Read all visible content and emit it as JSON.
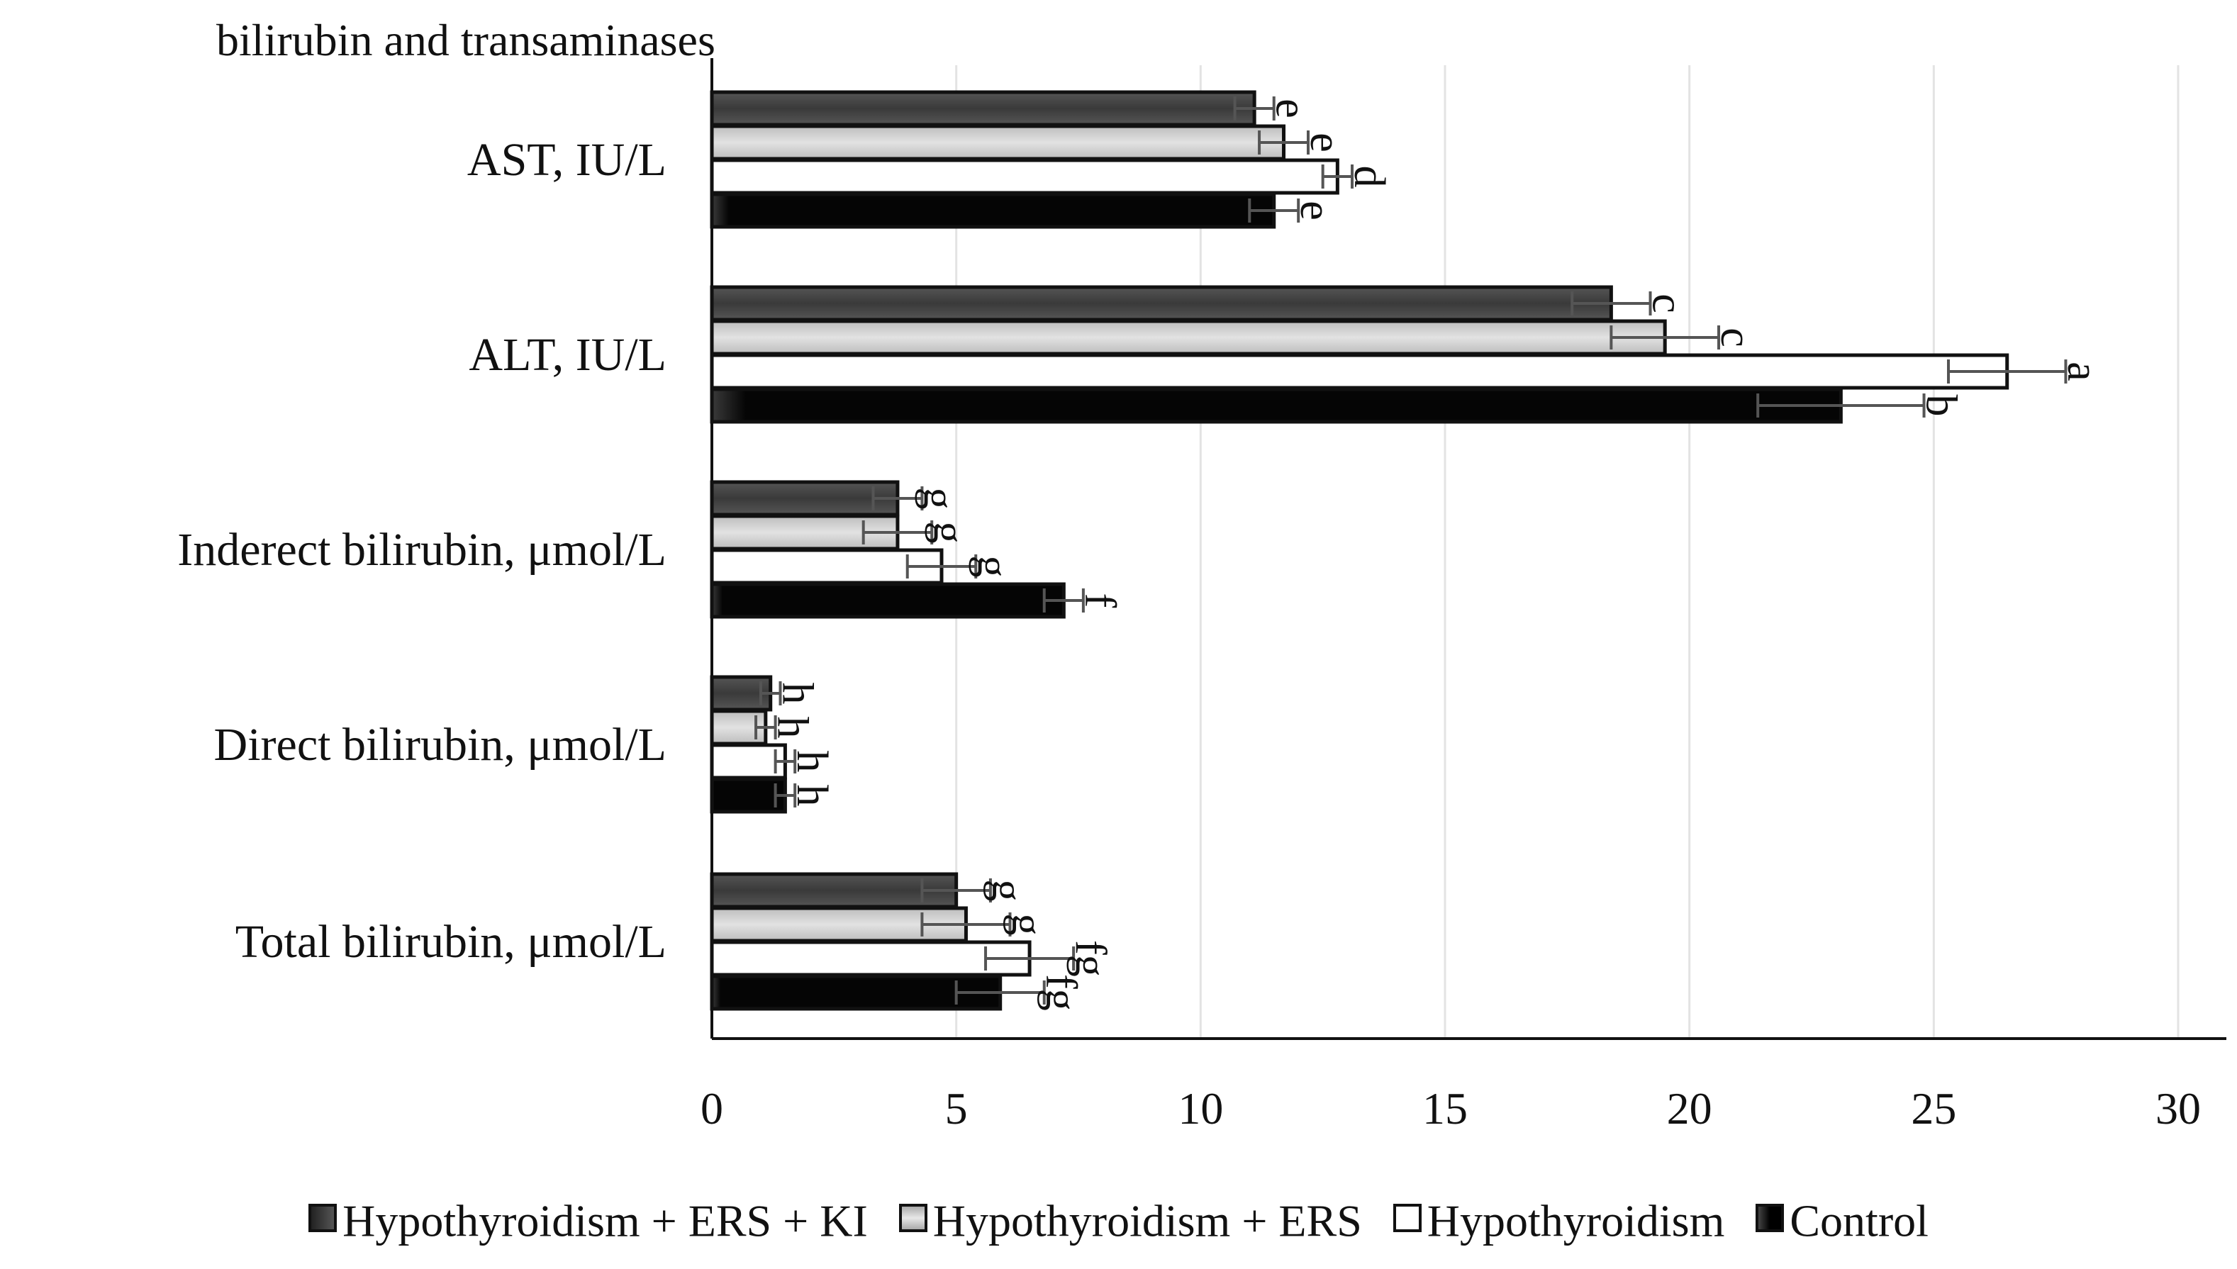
{
  "chart_data": {
    "type": "bar",
    "orientation": "horizontal",
    "title": "bilirubin and transaminases",
    "categories": [
      "AST, IU/L",
      "ALT, IU/L",
      "Inderect bilirubin, μmol/L",
      "Direct bilirubin, μmol/L",
      "Total bilirubin, μmol/L"
    ],
    "xlim": [
      0,
      30
    ],
    "xticks": [
      0,
      5,
      10,
      15,
      20,
      25,
      30
    ],
    "series": [
      {
        "name": "Hypothyroidism + ERS + KI",
        "values": [
          11.1,
          18.4,
          3.8,
          1.2,
          5.0
        ],
        "errors": [
          0.4,
          0.8,
          0.5,
          0.2,
          0.7
        ],
        "letters": [
          "e",
          "c",
          "g",
          "h",
          "g"
        ],
        "fill": "#4a4a4a"
      },
      {
        "name": "Hypothyroidism + ERS",
        "values": [
          11.7,
          19.5,
          3.8,
          1.1,
          5.2
        ],
        "errors": [
          0.5,
          1.1,
          0.7,
          0.2,
          0.9
        ],
        "letters": [
          "e",
          "c",
          "g",
          "h",
          "g"
        ],
        "fill": "#d2d2d2"
      },
      {
        "name": "Hypothyroidism",
        "values": [
          12.8,
          26.5,
          4.7,
          1.5,
          6.5
        ],
        "errors": [
          0.3,
          1.2,
          0.7,
          0.2,
          0.9
        ],
        "letters": [
          "d",
          "a",
          "g",
          "h",
          "fg"
        ],
        "fill": "#ffffff"
      },
      {
        "name": "Control",
        "values": [
          11.5,
          23.1,
          7.2,
          1.5,
          5.9
        ],
        "errors": [
          0.5,
          1.7,
          0.4,
          0.2,
          0.9
        ],
        "letters": [
          "e",
          "b",
          "f",
          "h",
          "fg"
        ],
        "fill": "#0a0a0a"
      }
    ],
    "grid": true,
    "legend_position": "bottom"
  }
}
